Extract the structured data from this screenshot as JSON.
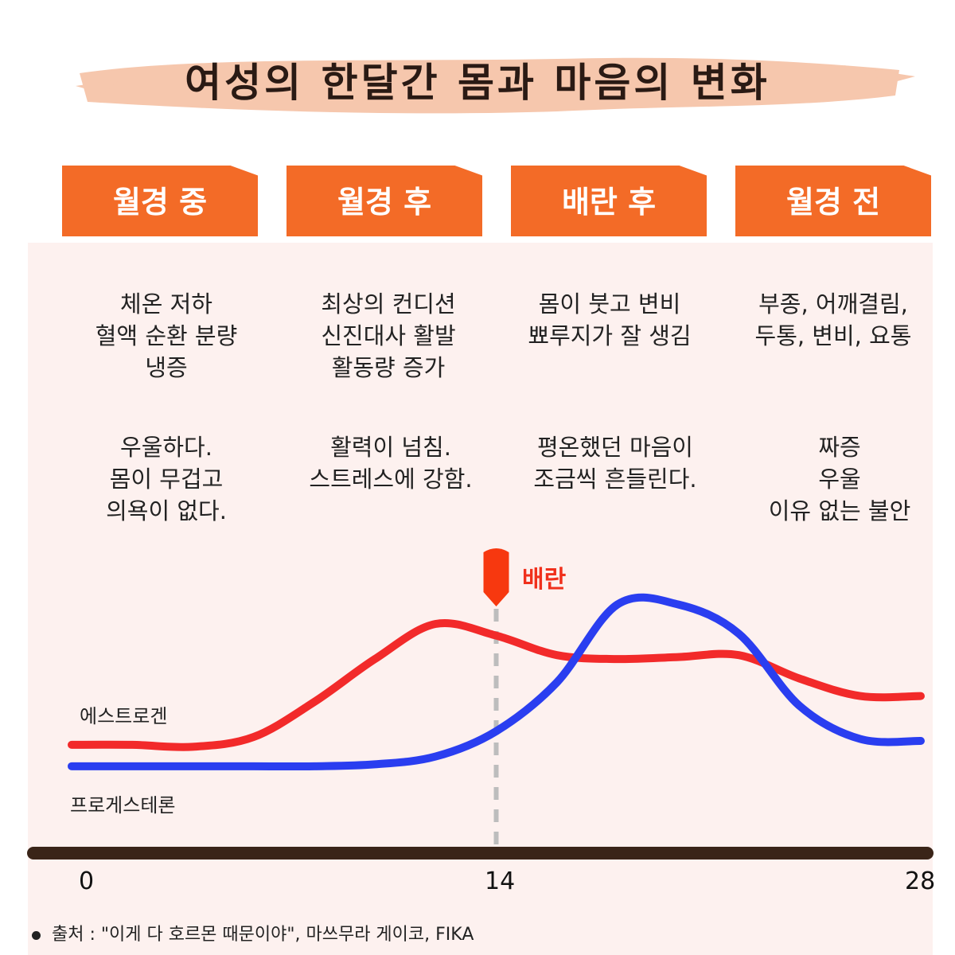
{
  "title": "여성의 한달간 몸과 마음의 변화",
  "colors": {
    "tab": "#f36b27",
    "panel": "#fdf1ef",
    "estrogen": "#f22a2a",
    "progesterone": "#2a3ef0",
    "axis": "#3a2418",
    "brush": "#f6c7ad",
    "marker": "#f7380f"
  },
  "phases": [
    {
      "tab": "월경 중",
      "body": [
        "체온 저하",
        "혈액 순환 분량",
        "냉증"
      ],
      "mind": [
        "우울하다.",
        "몸이 무겁고",
        "의욕이 없다."
      ]
    },
    {
      "tab": "월경 후",
      "body": [
        "최상의 컨디션",
        "신진대사 활발",
        "활동량 증가"
      ],
      "mind": [
        "활력이 넘침.",
        "스트레스에 강함."
      ]
    },
    {
      "tab": "배란 후",
      "body": [
        "몸이 붓고 변비",
        "뾰루지가 잘 생김"
      ],
      "mind": [
        "평온했던 마음이",
        "조금씩 흔들린다."
      ]
    },
    {
      "tab": "월경 전",
      "body": [
        "부종, 어깨결림,",
        "두통, 변비, 요통"
      ],
      "mind": [
        "짜증",
        "우울",
        "이유 없는 불안"
      ]
    }
  ],
  "chart_data": {
    "type": "line",
    "x": [
      0,
      2,
      4,
      6,
      8,
      10,
      12,
      14,
      16,
      18,
      20,
      22,
      24,
      26,
      28
    ],
    "xlabel": "",
    "ylabel": "",
    "xticks": [
      "0",
      "14",
      "28"
    ],
    "xlim": [
      0,
      28
    ],
    "ylim": [
      0,
      100
    ],
    "series": [
      {
        "name": "에스트로겐",
        "values": [
          18,
          18,
          17,
          22,
          40,
          62,
          80,
          74,
          64,
          62,
          63,
          64,
          52,
          43,
          43
        ]
      },
      {
        "name": "프로게스테론",
        "values": [
          7,
          7,
          7,
          7,
          7,
          8,
          12,
          25,
          50,
          90,
          90,
          75,
          38,
          21,
          20
        ]
      }
    ],
    "annotation": {
      "x": 14,
      "label": "배란"
    }
  },
  "source": "출처 : \"이게 다 호르몬 때문이야\", 마쓰무라 게이코, FIKA"
}
